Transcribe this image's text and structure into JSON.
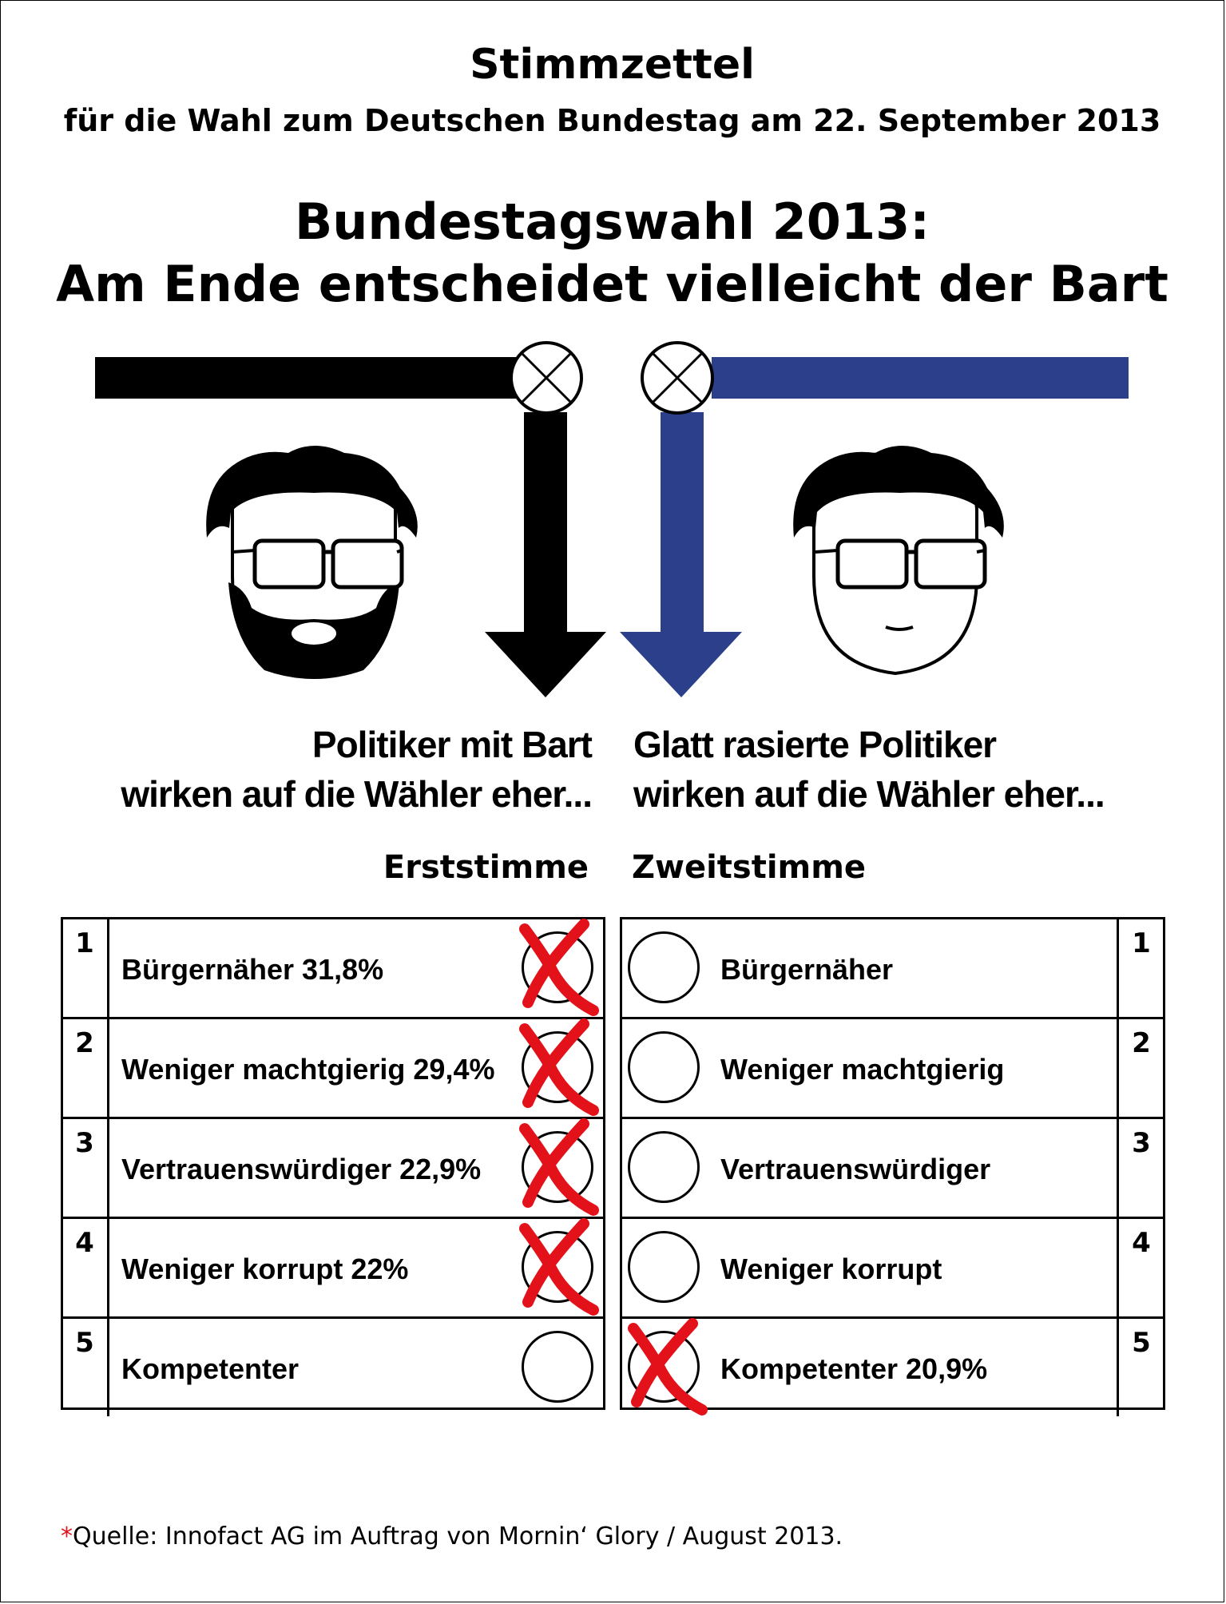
{
  "title": "Stimmzettel",
  "subtitle": "für die Wahl zum Deutschen Bundestag am 22. September 2013",
  "headline": {
    "line1": "Bundestagswahl 2013:",
    "line2": "Am Ende entscheidet vielleicht der Bart"
  },
  "captions": {
    "left": {
      "line1": "Politiker mit Bart",
      "line2": "wirken auf die Wähler eher..."
    },
    "right": {
      "line1": "Glatt rasierte Politiker",
      "line2": "wirken auf die Wähler eher..."
    }
  },
  "vote_headers": {
    "first": "Erststimme",
    "second": "Zweitstimme"
  },
  "ballot_first": [
    {
      "num": "1",
      "label": "Bürgernäher 31,8%",
      "marked": true
    },
    {
      "num": "2",
      "label": "Weniger machtgierig 29,4%",
      "marked": true
    },
    {
      "num": "3",
      "label": "Vertrauenswürdiger 22,9%",
      "marked": true
    },
    {
      "num": "4",
      "label": "Weniger korrupt 22%",
      "marked": true
    },
    {
      "num": "5",
      "label": "Kompetenter",
      "marked": false
    }
  ],
  "ballot_second": [
    {
      "num": "1",
      "label": "Bürgernäher",
      "marked": false
    },
    {
      "num": "2",
      "label": "Weniger machtgierig",
      "marked": false
    },
    {
      "num": "3",
      "label": "Vertrauenswürdiger",
      "marked": false
    },
    {
      "num": "4",
      "label": "Weniger korrupt",
      "marked": false
    },
    {
      "num": "5",
      "label": "Kompetenter 20,9%",
      "marked": true
    }
  ],
  "footnote": {
    "star": "*",
    "text": "Quelle: Innofact AG im Auftrag von Mornin‘ Glory / August 2013."
  },
  "colors": {
    "black_line": "#000000",
    "blue_line": "#2b3f8a",
    "mark_red": "#e3111a"
  },
  "icons": {
    "left_face": "bearded-politician-icon",
    "right_face": "shaved-politician-icon",
    "checkbox": "crossed-circle-icon",
    "vote_mark": "red-x-mark-icon"
  }
}
